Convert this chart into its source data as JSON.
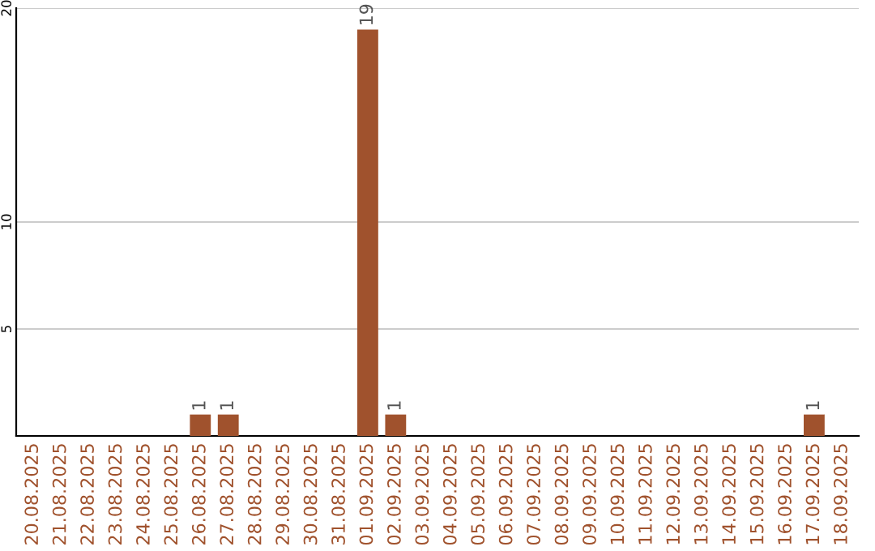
{
  "chart_data": {
    "type": "bar",
    "categories": [
      "20.08.2025",
      "21.08.2025",
      "22.08.2025",
      "23.08.2025",
      "24.08.2025",
      "25.08.2025",
      "26.08.2025",
      "27.08.2025",
      "28.08.2025",
      "29.08.2025",
      "30.08.2025",
      "31.08.2025",
      "01.09.2025",
      "02.09.2025",
      "03.09.2025",
      "04.09.2025",
      "05.09.2025",
      "06.09.2025",
      "07.09.2025",
      "08.09.2025",
      "09.09.2025",
      "10.09.2025",
      "11.09.2025",
      "12.09.2025",
      "13.09.2025",
      "14.09.2025",
      "15.09.2025",
      "16.09.2025",
      "17.09.2025",
      "18.09.2025"
    ],
    "values": [
      0,
      0,
      0,
      0,
      0,
      0,
      1,
      1,
      0,
      0,
      0,
      0,
      19,
      1,
      0,
      0,
      0,
      0,
      0,
      0,
      0,
      0,
      0,
      0,
      0,
      0,
      0,
      0,
      1,
      0
    ],
    "value_labels": [
      null,
      null,
      null,
      null,
      null,
      null,
      "1",
      "1",
      null,
      null,
      null,
      null,
      "19",
      "1",
      null,
      null,
      null,
      null,
      null,
      null,
      null,
      null,
      null,
      null,
      null,
      null,
      null,
      null,
      "1",
      null
    ],
    "color": "#a0522d",
    "ylim": [
      0,
      20
    ],
    "yticks": [
      5,
      10,
      20
    ],
    "grid": "y"
  }
}
